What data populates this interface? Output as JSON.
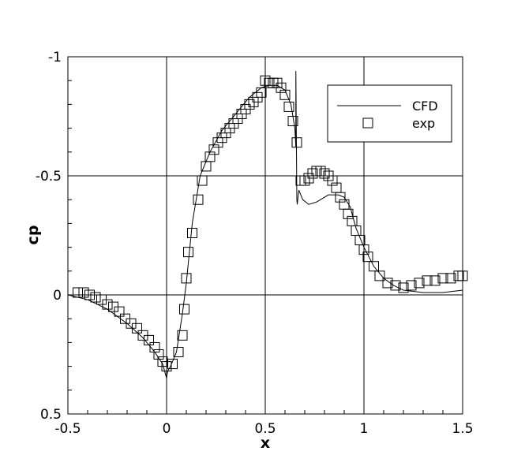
{
  "chart_data": {
    "type": "line",
    "title": "",
    "xlabel": "x",
    "ylabel": "cp",
    "xlim": [
      -0.5,
      1.5
    ],
    "ylim": [
      0.5,
      -1
    ],
    "y_axis_inverted": true,
    "grid": true,
    "x_ticks": [
      -0.5,
      0,
      0.5,
      1,
      1.5
    ],
    "x_tick_labels": [
      "-0.5",
      "0",
      "0.5",
      "1",
      "1.5"
    ],
    "y_ticks": [
      -1,
      -0.5,
      0,
      0.5
    ],
    "y_tick_labels": [
      "-1",
      "-0.5",
      "0",
      "0.5"
    ],
    "legend_position": "top-right",
    "series": [
      {
        "name": "CFD",
        "style": "solid-line",
        "color": "#000000",
        "x": [
          -0.5,
          -0.4,
          -0.3,
          -0.2,
          -0.12,
          -0.06,
          -0.02,
          0.0,
          0.005,
          0.02,
          0.05,
          0.08,
          0.1,
          0.13,
          0.17,
          0.22,
          0.28,
          0.35,
          0.42,
          0.48,
          0.52,
          0.56,
          0.6,
          0.63,
          0.65,
          0.655,
          0.655,
          0.66,
          0.662,
          0.67,
          0.69,
          0.72,
          0.76,
          0.82,
          0.87,
          0.9,
          0.93,
          0.96,
          1.0,
          1.05,
          1.1,
          1.15,
          1.2,
          1.3,
          1.4,
          1.5
        ],
        "y": [
          0.0,
          0.02,
          0.06,
          0.12,
          0.18,
          0.24,
          0.29,
          0.35,
          0.32,
          0.3,
          0.24,
          0.08,
          -0.05,
          -0.3,
          -0.5,
          -0.6,
          -0.69,
          -0.76,
          -0.83,
          -0.87,
          -0.88,
          -0.88,
          -0.86,
          -0.8,
          -0.7,
          -0.62,
          -0.94,
          -0.4,
          -0.38,
          -0.44,
          -0.4,
          -0.38,
          -0.39,
          -0.42,
          -0.42,
          -0.41,
          -0.37,
          -0.28,
          -0.2,
          -0.12,
          -0.07,
          -0.04,
          -0.02,
          -0.01,
          -0.01,
          -0.02
        ]
      },
      {
        "name": "exp",
        "style": "open-square",
        "color": "#000000",
        "x": [
          -0.45,
          -0.42,
          -0.39,
          -0.36,
          -0.33,
          -0.3,
          -0.27,
          -0.24,
          -0.21,
          -0.18,
          -0.15,
          -0.12,
          -0.09,
          -0.06,
          -0.04,
          -0.02,
          0.0,
          0.03,
          0.06,
          0.08,
          0.09,
          0.1,
          0.11,
          0.13,
          0.16,
          0.18,
          0.2,
          0.22,
          0.24,
          0.26,
          0.28,
          0.3,
          0.32,
          0.34,
          0.36,
          0.38,
          0.4,
          0.42,
          0.44,
          0.46,
          0.48,
          0.5,
          0.52,
          0.54,
          0.56,
          0.58,
          0.6,
          0.62,
          0.64,
          0.66,
          0.68,
          0.7,
          0.72,
          0.74,
          0.76,
          0.78,
          0.8,
          0.82,
          0.84,
          0.86,
          0.88,
          0.9,
          0.92,
          0.94,
          0.96,
          0.98,
          1.0,
          1.02,
          1.05,
          1.08,
          1.12,
          1.16,
          1.2,
          1.24,
          1.28,
          1.32,
          1.36,
          1.4,
          1.44,
          1.48,
          1.5
        ],
        "y": [
          -0.01,
          -0.01,
          0.0,
          0.01,
          0.02,
          0.04,
          0.05,
          0.07,
          0.1,
          0.12,
          0.14,
          0.17,
          0.19,
          0.22,
          0.25,
          0.28,
          0.3,
          0.29,
          0.24,
          0.17,
          0.06,
          -0.07,
          -0.18,
          -0.26,
          -0.4,
          -0.48,
          -0.54,
          -0.58,
          -0.61,
          -0.64,
          -0.66,
          -0.68,
          -0.7,
          -0.72,
          -0.74,
          -0.76,
          -0.78,
          -0.8,
          -0.81,
          -0.83,
          -0.85,
          -0.9,
          -0.89,
          -0.89,
          -0.89,
          -0.87,
          -0.84,
          -0.79,
          -0.73,
          -0.64,
          -0.48,
          -0.48,
          -0.49,
          -0.51,
          -0.52,
          -0.52,
          -0.51,
          -0.5,
          -0.48,
          -0.45,
          -0.41,
          -0.38,
          -0.34,
          -0.31,
          -0.27,
          -0.23,
          -0.19,
          -0.16,
          -0.12,
          -0.08,
          -0.05,
          -0.04,
          -0.03,
          -0.04,
          -0.05,
          -0.06,
          -0.06,
          -0.07,
          -0.07,
          -0.08,
          -0.08
        ]
      }
    ]
  }
}
